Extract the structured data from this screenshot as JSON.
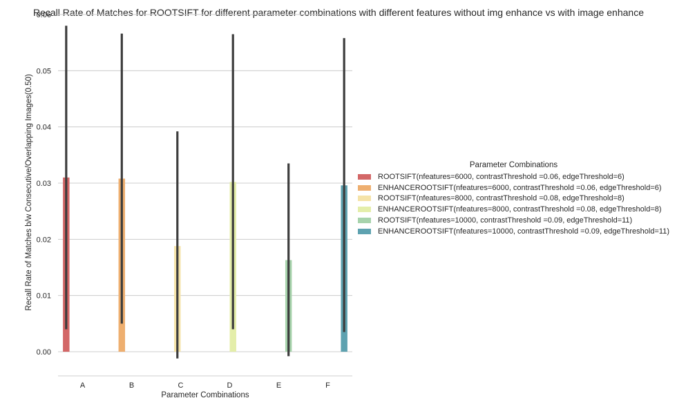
{
  "chart_data": {
    "type": "bar",
    "title": "Recall Rate of Matches for ROOTSIFT  for different parameter combinations with different features without img enhance vs with image enhance",
    "xlabel": "Parameter Combinations",
    "ylabel": "Recall Rate of Matches b/w Consecutive/Overlapping Images(0.50)",
    "categories": [
      "A",
      "B",
      "C",
      "D",
      "E",
      "F"
    ],
    "ylim": [
      -0.0043,
      0.06
    ],
    "yticks": [
      0.0,
      0.01,
      0.02,
      0.03,
      0.04,
      0.05,
      0.06
    ],
    "ytick_labels": [
      "0.00",
      "0.01",
      "0.02",
      "0.03",
      "0.04",
      "0.05",
      "0.06"
    ],
    "grid": "horizontal",
    "legend_title": "Parameter Combinations",
    "legend_position": "center-right",
    "series": [
      {
        "name": "ROOTSIFT(nfeatures=6000, contrastThreshold =0.06, edgeThreshold=6)",
        "color": "#d36767",
        "category": "A",
        "value": 0.031,
        "ci": [
          0.004,
          0.058
        ]
      },
      {
        "name": "ENHANCEROOTSIFT(nfeatures=6000, contrastThreshold =0.06, edgeThreshold=6)",
        "color": "#eeaf70",
        "category": "B",
        "value": 0.0308,
        "ci": [
          0.005,
          0.0566
        ]
      },
      {
        "name": "ROOTSIFT(nfeatures=8000, contrastThreshold =0.08, edgeThreshold=8)",
        "color": "#f5e3a8",
        "category": "C",
        "value": 0.0188,
        "ci": [
          -0.0012,
          0.0392
        ]
      },
      {
        "name": "ENHANCEROOTSIFT(nfeatures=8000, contrastThreshold =0.08, edgeThreshold=8)",
        "color": "#e4eeaa",
        "category": "D",
        "value": 0.0302,
        "ci": [
          0.004,
          0.0565
        ]
      },
      {
        "name": "ROOTSIFT(nfeatures=10000, contrastThreshold =0.09, edgeThreshold=11)",
        "color": "#a7d3ac",
        "category": "E",
        "value": 0.0163,
        "ci": [
          -0.0008,
          0.0335
        ]
      },
      {
        "name": "ENHANCEROOTSIFT(nfeatures=10000, contrastThreshold =0.09, edgeThreshold=11)",
        "color": "#5ea2b0",
        "category": "F",
        "value": 0.0296,
        "ci": [
          0.0035,
          0.0558
        ]
      }
    ]
  }
}
